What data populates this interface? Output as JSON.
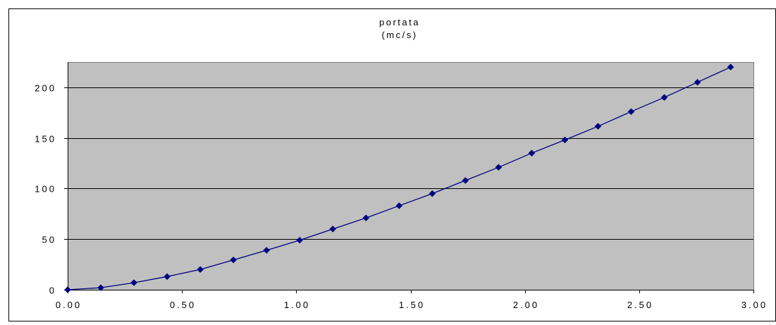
{
  "chart_data": {
    "type": "line",
    "title_lines": [
      "portata",
      "(mc/s)"
    ],
    "xlabel": "",
    "ylabel": "",
    "x_ticks": [
      "0.00",
      "0.50",
      "1.00",
      "1.50",
      "2.00",
      "2.50",
      "3.00"
    ],
    "y_ticks": [
      "0",
      "50",
      "100",
      "150",
      "200"
    ],
    "xlim": [
      0,
      3
    ],
    "ylim": [
      0,
      225
    ],
    "grid": "horizontal",
    "legend": "none",
    "colors": {
      "plot_background": "#c0c0c0",
      "series_line": "#000080",
      "grid": "#000000"
    },
    "series": [
      {
        "marker": "diamond",
        "x": [
          0.0,
          0.145,
          0.29,
          0.435,
          0.58,
          0.725,
          0.87,
          1.015,
          1.16,
          1.305,
          1.45,
          1.595,
          1.74,
          1.885,
          2.03,
          2.175,
          2.32,
          2.465,
          2.61,
          2.755,
          2.9
        ],
        "y": [
          0,
          2,
          7,
          13,
          20,
          29.5,
          39,
          49,
          60,
          71,
          83,
          95,
          108,
          121,
          135,
          148,
          161.5,
          176,
          190,
          205,
          220
        ]
      }
    ]
  }
}
